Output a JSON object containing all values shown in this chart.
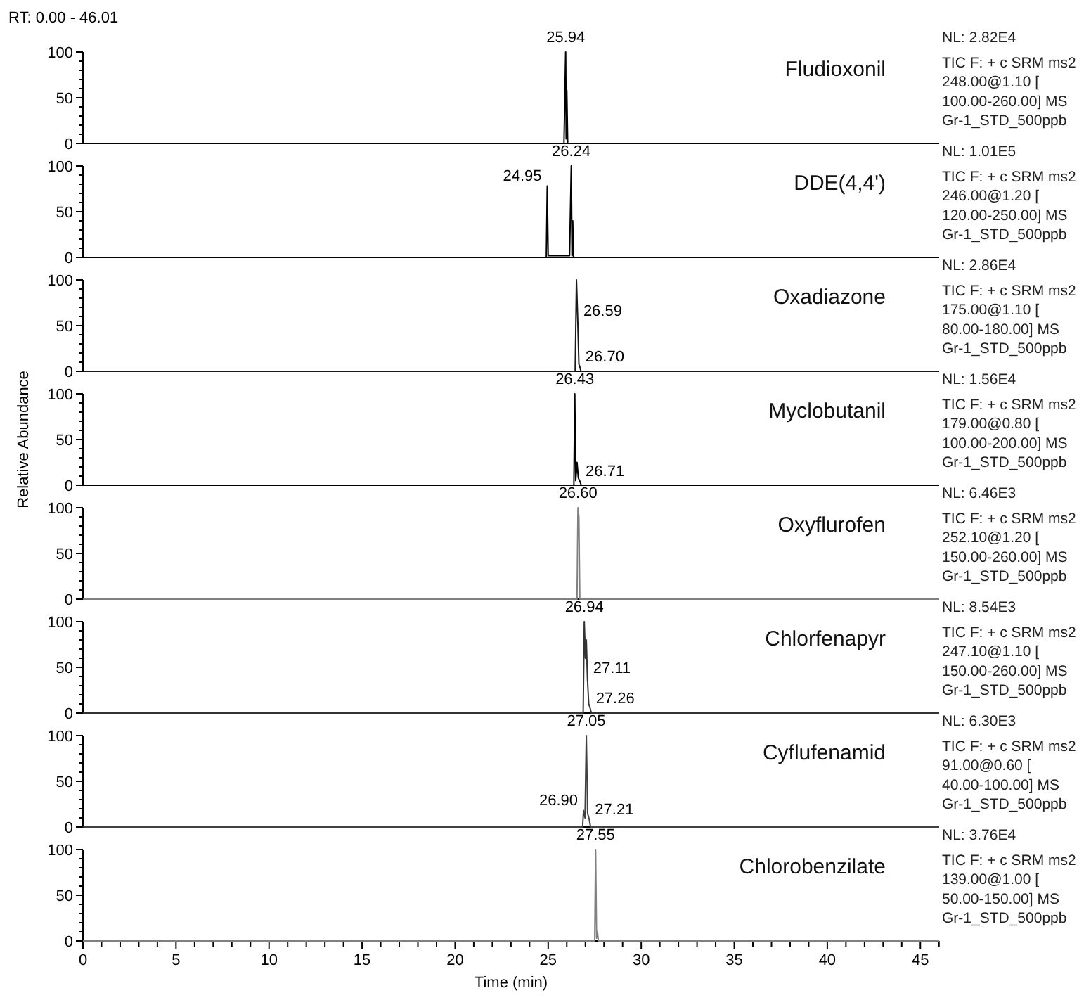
{
  "chart_data": [
    {
      "type": "line",
      "title": "Fludioxonil",
      "subtitle": "RT: 0.00 - 46.01",
      "xlim": [
        0,
        46.01
      ],
      "ylim": [
        0,
        100
      ],
      "yticks": [
        0,
        {
          "value": 10,
          "label": null
        },
        {
          "value": 20,
          "label": null
        },
        {
          "value": 30,
          "label": null
        },
        {
          "value": 40,
          "label": null
        },
        50,
        {
          "value": 60,
          "label": null
        },
        {
          "value": 70,
          "label": null
        },
        {
          "value": 80,
          "label": null
        },
        {
          "value": 90,
          "label": null
        },
        100
      ],
      "tick_labels": "y",
      "series": [
        {
          "color": "#000000",
          "x": [
            0,
            25.85,
            25.94,
            25.97,
            26.0,
            26.05,
            46.01
          ],
          "values": [
            0,
            0,
            100,
            5,
            58,
            0,
            0
          ]
        }
      ],
      "annotations": [
        {
          "text": "25.94",
          "x": 25.94,
          "y": 100
        },
        "NL: 2.82E4",
        "TIC F: + c SRM ms2",
        "248.00@1.10 [",
        "100.00-260.00] MS",
        "Gr-1_STD_500ppb"
      ]
    },
    {
      "type": "line",
      "title": "DDE(4,4')",
      "xlim": [
        0,
        46.01
      ],
      "ylim": [
        0,
        100
      ],
      "yticks": [
        0,
        {
          "value": 10,
          "label": null
        },
        {
          "value": 20,
          "label": null
        },
        {
          "value": 30,
          "label": null
        },
        {
          "value": 40,
          "label": null
        },
        50,
        {
          "value": 60,
          "label": null
        },
        {
          "value": 70,
          "label": null
        },
        {
          "value": 80,
          "label": null
        },
        {
          "value": 90,
          "label": null
        },
        100
      ],
      "tick_labels": "y",
      "series": [
        {
          "color": "#000000",
          "x": [
            0,
            24.9,
            24.95,
            25.0,
            26.15,
            26.24,
            26.28,
            26.32,
            26.36,
            46.01
          ],
          "values": [
            0,
            0,
            78,
            2,
            2,
            100,
            2,
            40,
            0,
            0
          ]
        }
      ],
      "annotations": [
        {
          "text": "24.95",
          "x": 24.95,
          "y": 78
        },
        {
          "text": "26.24",
          "x": 26.24,
          "y": 100
        },
        "NL: 1.01E5",
        "TIC F: + c SRM ms2",
        "246.00@1.20 [",
        "120.00-250.00] MS",
        "Gr-1_STD_500ppb"
      ]
    },
    {
      "type": "line",
      "title": "Oxadiazone",
      "xlim": [
        0,
        46.01
      ],
      "ylim": [
        0,
        100
      ],
      "yticks": [
        0,
        {
          "value": 10,
          "label": null
        },
        {
          "value": 20,
          "label": null
        },
        {
          "value": 30,
          "label": null
        },
        {
          "value": 40,
          "label": null
        },
        50,
        {
          "value": 60,
          "label": null
        },
        {
          "value": 70,
          "label": null
        },
        {
          "value": 80,
          "label": null
        },
        {
          "value": 90,
          "label": null
        },
        100
      ],
      "tick_labels": "y",
      "series": [
        {
          "color": "#1a1a1a",
          "x": [
            0,
            26.45,
            26.52,
            26.59,
            26.65,
            26.7,
            26.76,
            46.01
          ],
          "values": [
            0,
            0,
            100,
            55,
            8,
            5,
            0,
            0
          ]
        }
      ],
      "annotations": [
        {
          "text": "26.59",
          "x": 26.59,
          "y": 55
        },
        {
          "text": "26.70",
          "x": 26.7,
          "y": 5
        },
        "NL: 2.86E4",
        "TIC F: + c SRM ms2",
        "175.00@1.10 [",
        "80.00-180.00] MS",
        "Gr-1_STD_500ppb"
      ]
    },
    {
      "type": "line",
      "title": "Myclobutanil",
      "ylabel": "Relative Abundance",
      "xlim": [
        0,
        46.01
      ],
      "ylim": [
        0,
        100
      ],
      "yticks": [
        0,
        {
          "value": 10,
          "label": null
        },
        {
          "value": 20,
          "label": null
        },
        {
          "value": 30,
          "label": null
        },
        {
          "value": 40,
          "label": null
        },
        50,
        {
          "value": 60,
          "label": null
        },
        {
          "value": 70,
          "label": null
        },
        {
          "value": 80,
          "label": null
        },
        {
          "value": 90,
          "label": null
        },
        100
      ],
      "tick_labels": "y",
      "series": [
        {
          "color": "#000000",
          "x": [
            0,
            26.38,
            26.43,
            26.48,
            26.55,
            26.62,
            26.71,
            26.78,
            46.01
          ],
          "values": [
            0,
            0,
            100,
            5,
            25,
            8,
            4,
            0,
            0
          ]
        }
      ],
      "annotations": [
        {
          "text": "26.43",
          "x": 26.43,
          "y": 100
        },
        {
          "text": "26.71",
          "x": 26.71,
          "y": 4
        },
        "NL: 1.56E4",
        "TIC F: + c SRM ms2",
        "179.00@0.80 [",
        "100.00-200.00] MS",
        "Gr-1_STD_500ppb"
      ]
    },
    {
      "type": "line",
      "title": "Oxyflurofen",
      "xlim": [
        0,
        46.01
      ],
      "ylim": [
        0,
        100
      ],
      "yticks": [
        0,
        {
          "value": 10,
          "label": null
        },
        {
          "value": 20,
          "label": null
        },
        {
          "value": 30,
          "label": null
        },
        {
          "value": 40,
          "label": null
        },
        50,
        {
          "value": 60,
          "label": null
        },
        {
          "value": 70,
          "label": null
        },
        {
          "value": 80,
          "label": null
        },
        {
          "value": 90,
          "label": null
        },
        100
      ],
      "tick_labels": "y",
      "series": [
        {
          "color": "#808080",
          "x": [
            0,
            26.55,
            26.6,
            26.65,
            26.7,
            46.01
          ],
          "values": [
            0,
            0,
            100,
            90,
            0,
            0
          ]
        }
      ],
      "annotations": [
        {
          "text": "26.60",
          "x": 26.6,
          "y": 100
        },
        "NL: 6.46E3",
        "TIC F: + c SRM ms2",
        "252.10@1.20 [",
        "150.00-260.00] MS",
        "Gr-1_STD_500ppb"
      ]
    },
    {
      "type": "line",
      "title": "Chlorfenapyr",
      "xlim": [
        0,
        46.01
      ],
      "ylim": [
        0,
        100
      ],
      "yticks": [
        0,
        {
          "value": 10,
          "label": null
        },
        {
          "value": 20,
          "label": null
        },
        {
          "value": 30,
          "label": null
        },
        {
          "value": 40,
          "label": null
        },
        50,
        {
          "value": 60,
          "label": null
        },
        {
          "value": 70,
          "label": null
        },
        {
          "value": 80,
          "label": null
        },
        {
          "value": 90,
          "label": null
        },
        100
      ],
      "tick_labels": "y",
      "series": [
        {
          "color": "#333333",
          "x": [
            0,
            26.88,
            26.94,
            27.0,
            27.05,
            27.11,
            27.18,
            27.26,
            27.32,
            46.01
          ],
          "values": [
            0,
            0,
            100,
            60,
            80,
            38,
            10,
            5,
            0,
            0
          ]
        }
      ],
      "annotations": [
        {
          "text": "26.94",
          "x": 26.94,
          "y": 100
        },
        {
          "text": "27.11",
          "x": 27.11,
          "y": 38
        },
        {
          "text": "27.26",
          "x": 27.26,
          "y": 5
        },
        "NL: 8.54E3",
        "TIC F: + c SRM ms2",
        "247.10@1.10 [",
        "150.00-260.00] MS",
        "Gr-1_STD_500ppb"
      ]
    },
    {
      "type": "line",
      "title": "Cyflufenamid",
      "xlim": [
        0,
        46.01
      ],
      "ylim": [
        0,
        100
      ],
      "yticks": [
        0,
        {
          "value": 10,
          "label": null
        },
        {
          "value": 20,
          "label": null
        },
        {
          "value": 30,
          "label": null
        },
        {
          "value": 40,
          "label": null
        },
        50,
        {
          "value": 60,
          "label": null
        },
        {
          "value": 70,
          "label": null
        },
        {
          "value": 80,
          "label": null
        },
        {
          "value": 90,
          "label": null
        },
        100
      ],
      "tick_labels": "y",
      "series": [
        {
          "color": "#404040",
          "x": [
            0,
            26.85,
            26.9,
            26.98,
            27.05,
            27.12,
            27.21,
            27.28,
            46.01
          ],
          "values": [
            0,
            0,
            18,
            10,
            100,
            15,
            8,
            0,
            0
          ]
        }
      ],
      "annotations": [
        {
          "text": "26.90",
          "x": 26.9,
          "y": 18
        },
        {
          "text": "27.05",
          "x": 27.05,
          "y": 100
        },
        {
          "text": "27.21",
          "x": 27.21,
          "y": 8
        },
        "NL: 6.30E3",
        "TIC F: + c SRM ms2",
        "91.00@0.60 [",
        "40.00-100.00] MS",
        "Gr-1_STD_500ppb"
      ]
    },
    {
      "type": "line",
      "title": "Chlorobenzilate",
      "xlabel": "Time (min)",
      "xlim": [
        0,
        46.01
      ],
      "ylim": [
        0,
        100
      ],
      "yticks": [
        0,
        {
          "value": 10,
          "label": null
        },
        {
          "value": 20,
          "label": null
        },
        {
          "value": 30,
          "label": null
        },
        {
          "value": 40,
          "label": null
        },
        50,
        {
          "value": 60,
          "label": null
        },
        {
          "value": 70,
          "label": null
        },
        {
          "value": 80,
          "label": null
        },
        {
          "value": 90,
          "label": null
        },
        100
      ],
      "xticks": [
        0,
        {
          "value": 1,
          "label": null
        },
        {
          "value": 2,
          "label": null
        },
        {
          "value": 3,
          "label": null
        },
        {
          "value": 4,
          "label": null
        },
        5,
        {
          "value": 6,
          "label": null
        },
        {
          "value": 7,
          "label": null
        },
        {
          "value": 8,
          "label": null
        },
        {
          "value": 9,
          "label": null
        },
        10,
        {
          "value": 11,
          "label": null
        },
        {
          "value": 12,
          "label": null
        },
        {
          "value": 13,
          "label": null
        },
        {
          "value": 14,
          "label": null
        },
        15,
        {
          "value": 16,
          "label": null
        },
        {
          "value": 17,
          "label": null
        },
        {
          "value": 18,
          "label": null
        },
        {
          "value": 19,
          "label": null
        },
        20,
        {
          "value": 21,
          "label": null
        },
        {
          "value": 22,
          "label": null
        },
        {
          "value": 23,
          "label": null
        },
        {
          "value": 24,
          "label": null
        },
        25,
        {
          "value": 26,
          "label": null
        },
        {
          "value": 27,
          "label": null
        },
        {
          "value": 28,
          "label": null
        },
        {
          "value": 29,
          "label": null
        },
        30,
        {
          "value": 31,
          "label": null
        },
        {
          "value": 32,
          "label": null
        },
        {
          "value": 33,
          "label": null
        },
        {
          "value": 34,
          "label": null
        },
        35,
        {
          "value": 36,
          "label": null
        },
        {
          "value": 37,
          "label": null
        },
        {
          "value": 38,
          "label": null
        },
        {
          "value": 39,
          "label": null
        },
        40,
        {
          "value": 41,
          "label": null
        },
        {
          "value": 42,
          "label": null
        },
        {
          "value": 43,
          "label": null
        },
        {
          "value": 44,
          "label": null
        },
        45,
        {
          "value": 46,
          "label": null
        }
      ],
      "series": [
        {
          "color": "#808080",
          "x": [
            0,
            27.5,
            27.55,
            27.6,
            27.65,
            27.7,
            46.01
          ],
          "values": [
            0,
            0,
            100,
            3,
            10,
            0,
            0
          ]
        }
      ],
      "annotations": [
        {
          "text": "27.55",
          "x": 27.55,
          "y": 100
        },
        "NL: 3.76E4",
        "TIC F: + c SRM ms2",
        "139.00@1.00 [",
        "50.00-150.00] MS",
        "Gr-1_STD_500ppb"
      ]
    }
  ]
}
